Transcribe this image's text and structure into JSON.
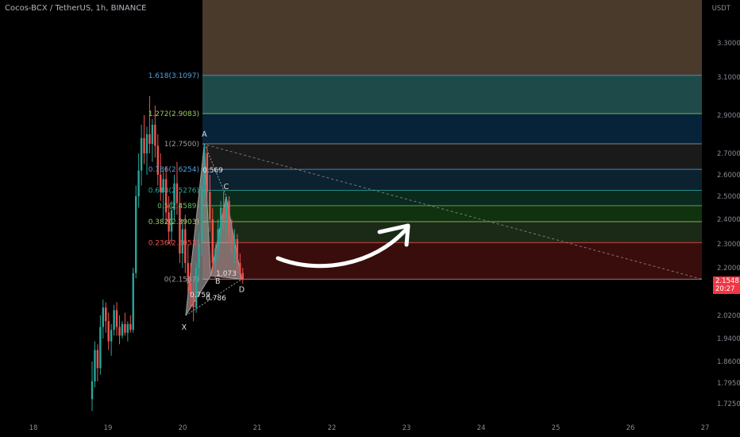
{
  "header": {
    "title": "Cocos-BCX / TetherUS, 1h, BINANCE"
  },
  "price_scale": {
    "currency": "USDT"
  },
  "last_price": {
    "value": "2.1548",
    "countdown": "20:27"
  },
  "colors": {
    "up": "#26a69a",
    "down": "#ef5350",
    "badge": "#f23645",
    "background": "#000000"
  },
  "chart_data": {
    "type": "candlestick",
    "title": "Cocos-BCX / TetherUS, 1h, BINANCE",
    "x_ticks": [
      "18",
      "19",
      "20",
      "21",
      "22",
      "23",
      "24",
      "25",
      "26",
      "27"
    ],
    "y_ticks": [
      "3.3000",
      "3.1000",
      "2.9000",
      "2.7000",
      "2.6000",
      "2.5000",
      "2.4000",
      "2.3000",
      "2.2000",
      "2.0200",
      "1.9400",
      "1.8600",
      "1.7950",
      "1.7250"
    ],
    "fib_levels": [
      {
        "label": "1.618(3.1097)",
        "price": 3.1097,
        "color": "#4fa3e0",
        "fill": "#1f4a4a"
      },
      {
        "label": "1.272(2.9083)",
        "price": 2.9083,
        "color": "#9ccc65",
        "fill": "#07233a"
      },
      {
        "label": "1(2.7500)",
        "price": 2.75,
        "color": "#9e9e9e",
        "fill": "#1a1a1a"
      },
      {
        "label": "0.786(2.6254)",
        "price": 2.6254,
        "color": "#4fa3e0",
        "fill": "#0c2230"
      },
      {
        "label": "0.618(2.5276)",
        "price": 2.5276,
        "color": "#26a69a",
        "fill": "#0a2a1e"
      },
      {
        "label": "0.5(2.4589)",
        "price": 2.4589,
        "color": "#66bb6a",
        "fill": "#10320f"
      },
      {
        "label": "0.382(2.3903)",
        "price": 2.3903,
        "color": "#9ccc65",
        "fill": "#1b2a17"
      },
      {
        "label": "0.236(2.3053)",
        "price": 2.3053,
        "color": "#ef5350",
        "fill": "#3a0d0d"
      },
      {
        "label": "0(2.1567)",
        "price": 2.1567,
        "color": "#9e9e9e",
        "fill": ""
      }
    ],
    "pattern_points": [
      {
        "label": "X",
        "date": "2020-01-20T01:00",
        "price": 2.02
      },
      {
        "label": "A",
        "date": "2020-01-20T07:00",
        "price": 2.75
      },
      {
        "label": "B",
        "date": "2020-01-20T09:00",
        "price": 2.17
      },
      {
        "label": "C",
        "date": "2020-01-20T14:00",
        "price": 2.5
      },
      {
        "label": "D",
        "date": "2020-01-20T19:00",
        "price": 2.1567
      }
    ],
    "pattern_ratios": [
      "0.569",
      "0.759",
      "0.786",
      "1.073"
    ],
    "candles_ohlc": [
      [
        1.74,
        1.86,
        1.7,
        1.8
      ],
      [
        1.8,
        1.93,
        1.78,
        1.9
      ],
      [
        1.9,
        1.92,
        1.8,
        1.84
      ],
      [
        1.84,
        2.02,
        1.82,
        1.98
      ],
      [
        1.98,
        2.08,
        1.94,
        2.05
      ],
      [
        2.05,
        2.07,
        1.96,
        2.0
      ],
      [
        2.0,
        2.03,
        1.9,
        1.93
      ],
      [
        1.93,
        1.99,
        1.88,
        1.97
      ],
      [
        1.97,
        2.06,
        1.95,
        2.04
      ],
      [
        2.04,
        2.07,
        1.95,
        1.98
      ],
      [
        1.98,
        2.02,
        1.92,
        1.95
      ],
      [
        1.95,
        2.0,
        1.94,
        1.99
      ],
      [
        1.99,
        2.03,
        1.95,
        1.96
      ],
      [
        1.96,
        2.0,
        1.93,
        1.99
      ],
      [
        1.99,
        2.02,
        1.96,
        1.97
      ],
      [
        1.97,
        2.2,
        1.96,
        2.18
      ],
      [
        2.18,
        2.55,
        2.16,
        2.5
      ],
      [
        2.5,
        2.7,
        2.45,
        2.62
      ],
      [
        2.62,
        2.85,
        2.55,
        2.78
      ],
      [
        2.78,
        2.9,
        2.65,
        2.7
      ],
      [
        2.7,
        2.84,
        2.6,
        2.8
      ],
      [
        2.8,
        3.0,
        2.7,
        2.75
      ],
      [
        2.75,
        2.88,
        2.66,
        2.85
      ],
      [
        2.85,
        2.95,
        2.68,
        2.74
      ],
      [
        2.74,
        2.8,
        2.55,
        2.6
      ],
      [
        2.6,
        2.7,
        2.48,
        2.52
      ],
      [
        2.52,
        2.62,
        2.4,
        2.58
      ],
      [
        2.58,
        2.64,
        2.38,
        2.43
      ],
      [
        2.43,
        2.5,
        2.3,
        2.35
      ],
      [
        2.35,
        2.48,
        2.3,
        2.44
      ],
      [
        2.44,
        2.6,
        2.4,
        2.56
      ],
      [
        2.56,
        2.66,
        2.42,
        2.47
      ],
      [
        2.47,
        2.52,
        2.22,
        2.26
      ],
      [
        2.26,
        2.4,
        2.2,
        2.36
      ],
      [
        2.36,
        2.42,
        2.18,
        2.22
      ],
      [
        2.22,
        2.3,
        2.1,
        2.14
      ],
      [
        2.14,
        2.22,
        2.05,
        2.1
      ],
      [
        2.1,
        2.16,
        2.0,
        2.05
      ],
      [
        2.05,
        2.22,
        2.03,
        2.2
      ],
      [
        2.2,
        2.35,
        2.15,
        2.3
      ],
      [
        2.3,
        2.6,
        2.25,
        2.55
      ],
      [
        2.55,
        2.75,
        2.5,
        2.7
      ],
      [
        2.7,
        2.74,
        2.48,
        2.52
      ],
      [
        2.52,
        2.6,
        2.35,
        2.4
      ],
      [
        2.4,
        2.45,
        2.18,
        2.22
      ],
      [
        2.22,
        2.3,
        2.16,
        2.28
      ],
      [
        2.28,
        2.4,
        2.24,
        2.36
      ],
      [
        2.36,
        2.48,
        2.3,
        2.45
      ],
      [
        2.45,
        2.52,
        2.36,
        2.4
      ],
      [
        2.4,
        2.5,
        2.35,
        2.48
      ],
      [
        2.48,
        2.5,
        2.3,
        2.34
      ],
      [
        2.34,
        2.4,
        2.26,
        2.3
      ],
      [
        2.3,
        2.36,
        2.22,
        2.32
      ],
      [
        2.32,
        2.34,
        2.18,
        2.22
      ],
      [
        2.22,
        2.26,
        2.15,
        2.18
      ],
      [
        2.18,
        2.2,
        2.14,
        2.155
      ]
    ]
  }
}
